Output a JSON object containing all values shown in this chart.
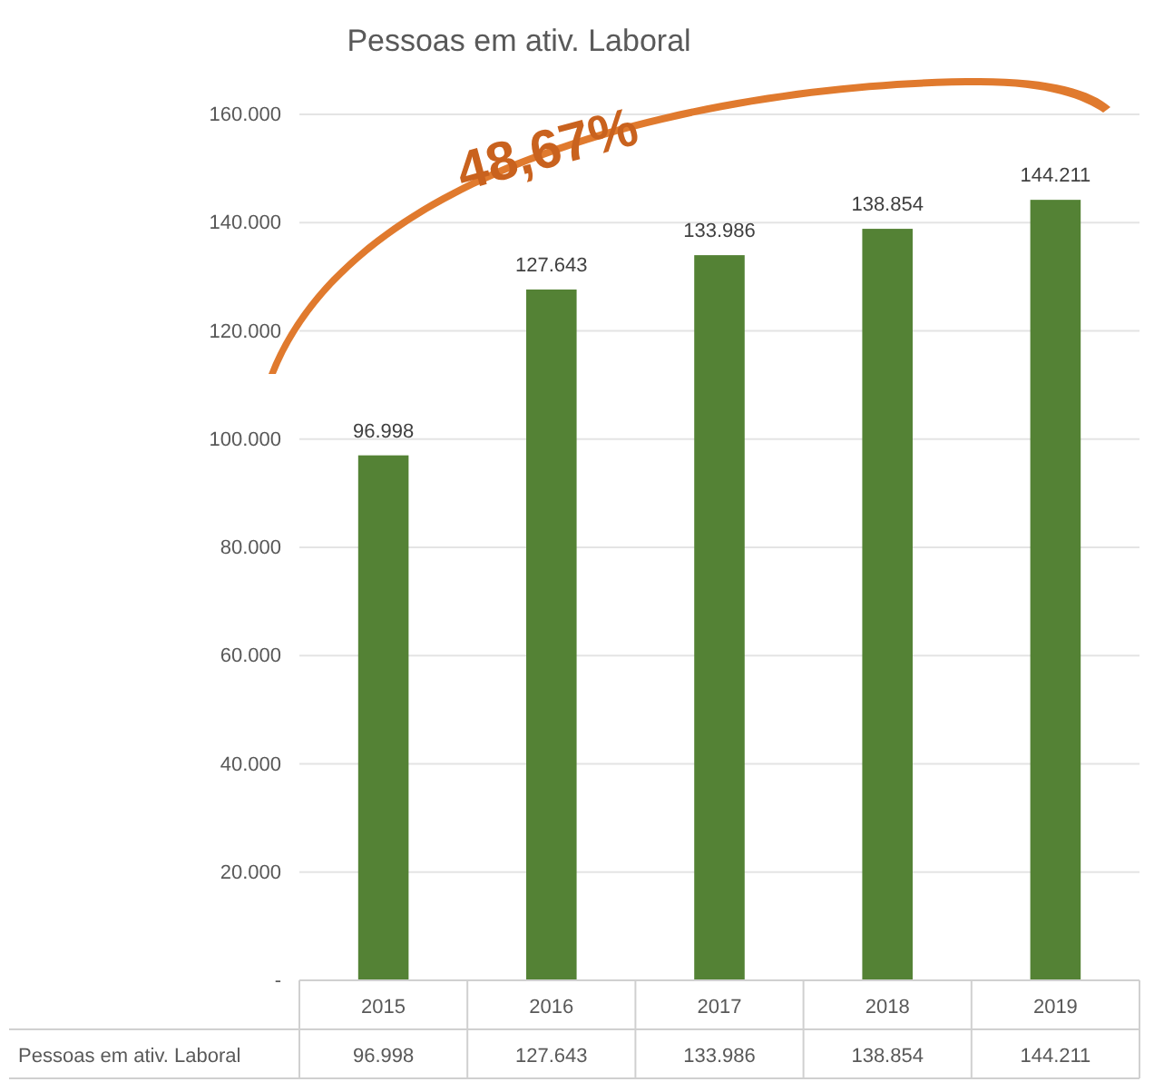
{
  "chart_data": {
    "type": "bar",
    "title": "Pessoas em ativ. Laboral",
    "categories": [
      "2015",
      "2016",
      "2017",
      "2018",
      "2019"
    ],
    "series": [
      {
        "name": "Pessoas em ativ. Laboral",
        "color": "#548235",
        "values": [
          96998,
          127643,
          133986,
          138854,
          144211
        ],
        "value_labels": [
          "96.998",
          "127.643",
          "133.986",
          "138.854",
          "144.211"
        ]
      }
    ],
    "ylim": [
      0,
      160000
    ],
    "yticks": [
      {
        "value": 0,
        "label": "-"
      },
      {
        "value": 20000,
        "label": "20.000"
      },
      {
        "value": 40000,
        "label": "40.000"
      },
      {
        "value": 60000,
        "label": "60.000"
      },
      {
        "value": 80000,
        "label": "80.000"
      },
      {
        "value": 100000,
        "label": "100.000"
      },
      {
        "value": 120000,
        "label": "120.000"
      },
      {
        "value": 140000,
        "label": "140.000"
      },
      {
        "value": 160000,
        "label": "160.000"
      }
    ],
    "grid": "y",
    "annotations": [
      "48,67%"
    ]
  }
}
